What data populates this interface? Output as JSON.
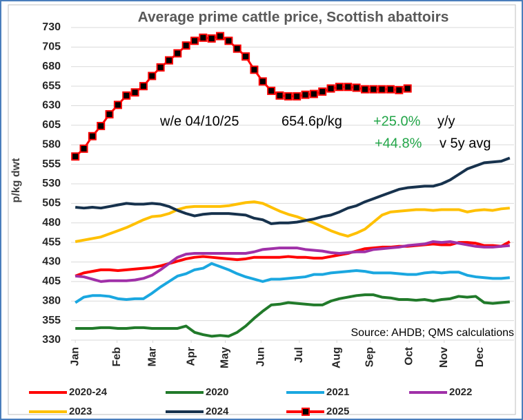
{
  "chart_data": {
    "type": "line",
    "title": "Average prime cattle price, Scottish abattoirs",
    "y_label": "p/kg dwt",
    "annotations": [
      "w/e 04/10/25",
      "654.6p/kg",
      "+25.0%",
      "y/y",
      "+44.8%",
      "v 5y avg",
      "Source: AHDB; QMS calculations"
    ],
    "annotation_colors": [
      "#000000",
      "#000000",
      "#22a548",
      "#000000",
      "#22a548",
      "#000000",
      "#000000"
    ],
    "x": [
      1,
      2,
      3,
      4,
      5,
      6,
      7,
      8,
      9,
      10,
      11,
      12,
      13,
      14,
      15,
      16,
      17,
      18,
      19,
      20,
      21,
      22,
      23,
      24,
      25,
      26,
      27,
      28,
      29,
      30,
      31,
      32,
      33,
      34,
      35,
      36,
      37,
      38,
      39,
      40,
      41,
      42,
      43,
      44,
      45,
      46,
      47,
      48,
      49,
      50,
      51,
      52
    ],
    "xlim": [
      0.5,
      52.5
    ],
    "xticks": [
      {
        "value": 1,
        "label": "Jan"
      },
      {
        "value": 5.9,
        "label": "Feb"
      },
      {
        "value": 10.1,
        "label": "Mar"
      },
      {
        "value": 14.6,
        "label": "Apr"
      },
      {
        "value": 18.6,
        "label": "May"
      },
      {
        "value": 22.8,
        "label": "Jun"
      },
      {
        "value": 27.3,
        "label": "Jul"
      },
      {
        "value": 31.7,
        "label": "Aug"
      },
      {
        "value": 35.6,
        "label": "Sep"
      },
      {
        "value": 40.2,
        "label": "Oct"
      },
      {
        "value": 44.3,
        "label": "Nov"
      },
      {
        "value": 48.5,
        "label": "Dec"
      }
    ],
    "ylim": [
      330,
      730
    ],
    "yticks": [
      330,
      355,
      380,
      405,
      430,
      455,
      480,
      505,
      530,
      555,
      580,
      605,
      630,
      655,
      680,
      705,
      730
    ],
    "grid": true,
    "series": [
      {
        "name": "2020-24",
        "color": "#ff0000",
        "values": [
          412,
          416,
          418,
          420,
          420,
          419,
          420,
          421,
          422,
          423,
          425,
          428,
          431,
          434,
          436,
          437,
          436,
          435,
          434,
          433,
          434,
          436,
          436,
          436,
          436,
          437,
          436,
          436,
          435,
          435,
          437,
          439,
          441,
          444,
          447,
          448,
          449,
          449,
          450,
          450,
          451,
          452,
          453,
          452,
          452,
          455,
          455,
          454,
          451,
          451,
          450,
          456
        ]
      },
      {
        "name": "2020",
        "color": "#217a2a",
        "values": [
          345,
          345,
          345,
          346,
          346,
          345,
          345,
          346,
          346,
          345,
          345,
          345,
          345,
          348,
          340,
          337,
          335,
          336,
          335,
          340,
          348,
          358,
          367,
          375,
          376,
          378,
          377,
          376,
          375,
          375,
          380,
          383,
          385,
          387,
          388,
          388,
          385,
          384,
          382,
          382,
          381,
          382,
          380,
          382,
          383,
          386,
          385,
          386,
          378,
          377,
          378,
          379
        ]
      },
      {
        "name": "2021",
        "color": "#1aa7e0",
        "values": [
          378,
          385,
          387,
          387,
          386,
          383,
          382,
          383,
          383,
          390,
          398,
          405,
          412,
          415,
          420,
          422,
          428,
          424,
          420,
          415,
          411,
          408,
          405,
          408,
          408,
          409,
          410,
          411,
          414,
          414,
          416,
          417,
          418,
          419,
          418,
          416,
          416,
          416,
          415,
          414,
          414,
          416,
          417,
          416,
          417,
          417,
          413,
          411,
          410,
          409,
          409,
          410
        ]
      },
      {
        "name": "2022",
        "color": "#a030a8",
        "values": [
          412,
          411,
          408,
          405,
          406,
          406,
          406,
          407,
          409,
          413,
          420,
          428,
          436,
          440,
          441,
          441,
          441,
          441,
          441,
          441,
          441,
          443,
          446,
          447,
          448,
          448,
          448,
          446,
          445,
          444,
          442,
          441,
          442,
          443,
          443,
          446,
          447,
          448,
          449,
          451,
          452,
          453,
          456,
          455,
          456,
          454,
          452,
          450,
          449,
          449,
          450,
          451
        ]
      },
      {
        "name": "2023",
        "color": "#ffc000",
        "values": [
          456,
          458,
          460,
          462,
          466,
          470,
          474,
          479,
          484,
          488,
          489,
          492,
          497,
          500,
          501,
          501,
          501,
          501,
          502,
          504,
          506,
          507,
          505,
          500,
          495,
          491,
          488,
          484,
          480,
          475,
          470,
          466,
          463,
          467,
          472,
          481,
          490,
          494,
          495,
          496,
          497,
          497,
          496,
          497,
          497,
          497,
          494,
          496,
          497,
          496,
          498,
          499
        ]
      },
      {
        "name": "2024",
        "color": "#17324d",
        "values": [
          500,
          499,
          500,
          499,
          501,
          503,
          505,
          504,
          504,
          505,
          504,
          501,
          496,
          492,
          489,
          491,
          492,
          492,
          492,
          491,
          490,
          486,
          484,
          479,
          480,
          480,
          481,
          483,
          485,
          488,
          490,
          494,
          499,
          502,
          507,
          511,
          515,
          519,
          523,
          525,
          526,
          527,
          527,
          530,
          535,
          542,
          549,
          553,
          557,
          558,
          559,
          563
        ]
      },
      {
        "name": "2025",
        "color": "#ff0000",
        "marker": "square",
        "values": [
          565,
          575,
          591,
          604,
          619,
          631,
          643,
          647,
          655,
          668,
          679,
          688,
          697,
          707,
          713,
          717,
          716,
          719,
          713,
          703,
          693,
          676,
          661,
          649,
          643,
          642,
          642,
          644,
          645,
          648,
          652,
          654,
          654,
          653,
          651,
          651,
          651,
          651,
          650,
          652,
          null,
          null,
          null,
          null,
          null,
          null,
          null,
          null,
          null,
          null,
          null,
          null
        ]
      }
    ]
  }
}
